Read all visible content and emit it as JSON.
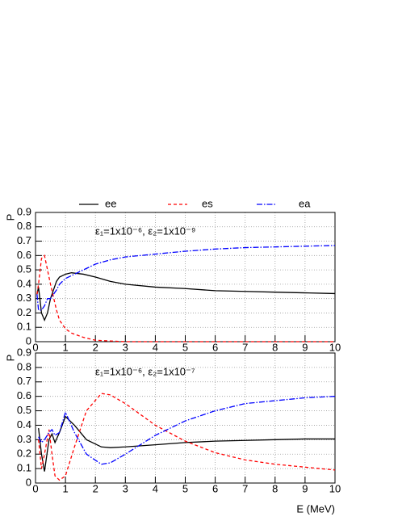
{
  "chart_data": [
    {
      "type": "line",
      "legend": "top",
      "grid": true,
      "ylabel": "P",
      "annotation": "ε₁=1x10⁻⁶, ε₂=1x10⁻⁹",
      "x": [
        0.05,
        0.1,
        0.2,
        0.3,
        0.4,
        0.5,
        0.7,
        0.8,
        1.0,
        1.2,
        1.6,
        2,
        2.5,
        3,
        4,
        5,
        6,
        7,
        8,
        9,
        10
      ],
      "series": [
        {
          "name": "ee",
          "color": "#000000",
          "line_style": "solid",
          "values": [
            0.33,
            0.38,
            0.2,
            0.15,
            0.2,
            0.3,
            0.42,
            0.45,
            0.47,
            0.48,
            0.47,
            0.45,
            0.42,
            0.4,
            0.38,
            0.37,
            0.355,
            0.35,
            0.345,
            0.34,
            0.335
          ]
        },
        {
          "name": "es",
          "color": "#ff0000",
          "line_style": "dashed",
          "values": [
            0.33,
            0.4,
            0.58,
            0.6,
            0.5,
            0.4,
            0.22,
            0.15,
            0.09,
            0.06,
            0.03,
            0.01,
            0.005,
            0,
            0,
            0,
            0,
            0,
            0,
            0,
            0
          ]
        },
        {
          "name": "ea",
          "color": "#0000ff",
          "line_style": "dashdot",
          "values": [
            0.33,
            0.22,
            0.22,
            0.25,
            0.3,
            0.3,
            0.36,
            0.4,
            0.44,
            0.46,
            0.5,
            0.54,
            0.57,
            0.59,
            0.61,
            0.63,
            0.645,
            0.655,
            0.66,
            0.665,
            0.67
          ]
        }
      ],
      "xlim": [
        0,
        10
      ],
      "xticks": [
        0,
        1,
        2,
        3,
        4,
        5,
        6,
        7,
        8,
        9,
        10
      ],
      "ylim": [
        0,
        0.9
      ],
      "yticks": [
        0,
        0.1,
        0.2,
        0.3,
        0.4,
        0.5,
        0.6,
        0.7,
        0.8,
        0.9
      ]
    },
    {
      "type": "line",
      "grid": true,
      "ylabel": "P",
      "xlabel": "E (MeV)",
      "annotation": "ε₁=1x10⁻⁶, ε₂=1x10⁻⁷",
      "x": [
        0.1,
        0.2,
        0.3,
        0.45,
        0.55,
        0.65,
        0.8,
        1.0,
        1.3,
        1.7,
        2.2,
        2.5,
        3,
        4,
        5,
        6,
        7,
        8,
        9,
        10
      ],
      "series": [
        {
          "color": "#000000",
          "line_style": "solid",
          "values": [
            0.38,
            0.2,
            0.08,
            0.3,
            0.34,
            0.28,
            0.35,
            0.46,
            0.4,
            0.3,
            0.25,
            0.245,
            0.25,
            0.265,
            0.28,
            0.29,
            0.295,
            0.3,
            0.305,
            0.305
          ]
        },
        {
          "color": "#ff0000",
          "line_style": "dashed",
          "values": [
            0.3,
            0.1,
            0.2,
            0.37,
            0.2,
            0.05,
            0.02,
            0.05,
            0.25,
            0.5,
            0.62,
            0.61,
            0.55,
            0.4,
            0.29,
            0.21,
            0.16,
            0.13,
            0.11,
            0.09
          ]
        },
        {
          "color": "#0000ff",
          "line_style": "dashdot",
          "values": [
            0.32,
            0.28,
            0.3,
            0.35,
            0.37,
            0.33,
            0.35,
            0.49,
            0.35,
            0.2,
            0.13,
            0.14,
            0.2,
            0.33,
            0.43,
            0.5,
            0.55,
            0.57,
            0.59,
            0.6
          ]
        }
      ],
      "xlim": [
        0,
        10
      ],
      "xticks": [
        0,
        1,
        2,
        3,
        4,
        5,
        6,
        7,
        8,
        9,
        10
      ],
      "ylim": [
        0,
        0.9
      ],
      "yticks": [
        0,
        0.1,
        0.2,
        0.3,
        0.4,
        0.5,
        0.6,
        0.7,
        0.8,
        0.9
      ]
    }
  ]
}
